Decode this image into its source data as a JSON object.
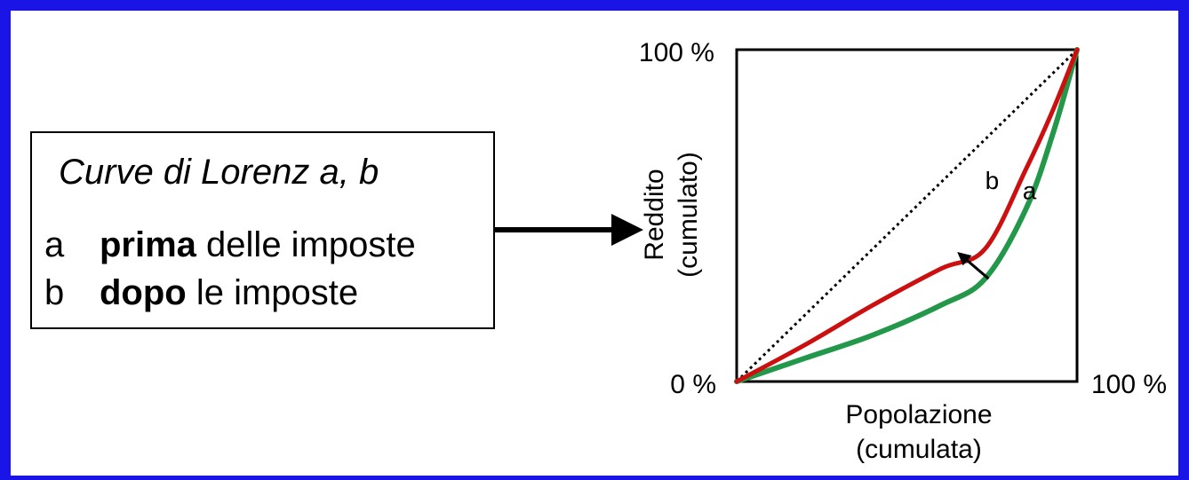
{
  "legend": {
    "title": "Curve di Lorenz a, b",
    "items": [
      {
        "key": "a",
        "bold": "prima",
        "rest": " delle imposte"
      },
      {
        "key": "b",
        "bold": "dopo",
        "rest": " le imposte"
      }
    ]
  },
  "colors": {
    "frame": "#1a14e6",
    "curve_a": "#23974a",
    "curve_b": "#cc1010",
    "equality": "#000000"
  },
  "chart_data": {
    "type": "line",
    "xlabel_lines": [
      "Popolazione",
      "(cumulata)"
    ],
    "ylabel_lines": [
      "Reddito",
      "(cumulato)"
    ],
    "y_ticks": [
      "0 %",
      "100 %"
    ],
    "x_tick_right": "100 %",
    "xlim": [
      0,
      100
    ],
    "ylim": [
      0,
      100
    ],
    "series": [
      {
        "name": "a",
        "x": [
          0,
          20,
          40,
          60,
          73,
          85,
          93,
          100
        ],
        "y": [
          0,
          7,
          14,
          23,
          31,
          52,
          75,
          100
        ]
      },
      {
        "name": "b",
        "x": [
          0,
          20,
          40,
          60,
          73,
          85,
          93,
          100
        ],
        "y": [
          0,
          11,
          23,
          34,
          40,
          64,
          82,
          100
        ]
      },
      {
        "name": "equality",
        "x": [
          0,
          100
        ],
        "y": [
          0,
          100
        ]
      }
    ],
    "annotations": [
      {
        "text": "a",
        "x": 84,
        "y": 55
      },
      {
        "text": "b",
        "x": 73,
        "y": 58
      }
    ],
    "shift_arrow": {
      "from": [
        74,
        31
      ],
      "to": [
        66,
        38
      ]
    }
  }
}
